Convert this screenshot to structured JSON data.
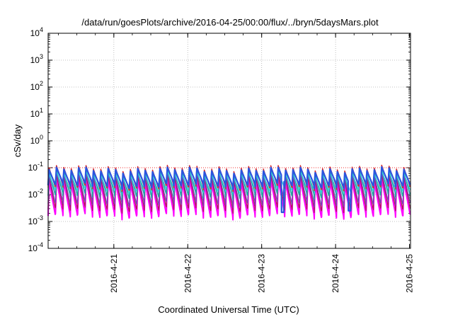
{
  "chart_data": {
    "type": "line",
    "title": "/data/run/goesPlots/archive/2016-04-25/00:00/flux/../bryn/5daysMars.plot",
    "xlabel": "Coordinated Universal Time (UTC)",
    "ylabel": "cSv/day",
    "yscale": "log",
    "ylim": [
      0.0001,
      10000
    ],
    "y_ticks": [
      {
        "base": "10",
        "exp": "-4"
      },
      {
        "base": "10",
        "exp": "-3"
      },
      {
        "base": "10",
        "exp": "-2"
      },
      {
        "base": "10",
        "exp": "-1"
      },
      {
        "base": "10",
        "exp": "0"
      },
      {
        "base": "10",
        "exp": "1"
      },
      {
        "base": "10",
        "exp": "2"
      },
      {
        "base": "10",
        "exp": "3"
      },
      {
        "base": "10",
        "exp": "4"
      }
    ],
    "xlim": [
      "2016-04-20T02:40",
      "2016-04-25T00:20"
    ],
    "x_ticks": [
      {
        "label": "2016-4-21",
        "value": "2016-04-21T00:00"
      },
      {
        "label": "2016-4-22",
        "value": "2016-04-22T00:00"
      },
      {
        "label": "2016-4-23",
        "value": "2016-04-23T00:00"
      },
      {
        "label": "2016-4-24",
        "value": "2016-04-24T00:00"
      },
      {
        "label": "2016-4-25",
        "value": "2016-04-25T00:00"
      }
    ],
    "grid": true,
    "legend": "none",
    "series": [
      {
        "color": "#ff00ff",
        "peak": 0.03,
        "trough": 0.0016,
        "width": 2.0
      },
      {
        "color": "#b0155a",
        "peak": 0.045,
        "trough": 0.0028,
        "width": 1.3
      },
      {
        "color": "#7b3fb8",
        "peak": 0.055,
        "trough": 0.0045,
        "width": 1.3
      },
      {
        "color": "#1fa8a0",
        "peak": 0.07,
        "trough": 0.009,
        "width": 1.6
      },
      {
        "color": "#2fd0d8",
        "peak": 0.06,
        "trough": 0.014,
        "width": 1.3
      },
      {
        "color": "#d4252a",
        "peak": 0.1,
        "trough": 0.018,
        "width": 1.4
      },
      {
        "color": "#2a55e0",
        "peak": 0.085,
        "trough": 0.022,
        "width": 2.2
      }
    ],
    "cycle_hours": 2.4,
    "dropouts": [
      {
        "time": "2016-04-23T06:50",
        "value": 0.0022
      },
      {
        "time": "2016-04-24T04:30",
        "value": 0.0025
      }
    ],
    "threshold_line": {
      "value": 0.1,
      "color": "#ff0000"
    }
  }
}
